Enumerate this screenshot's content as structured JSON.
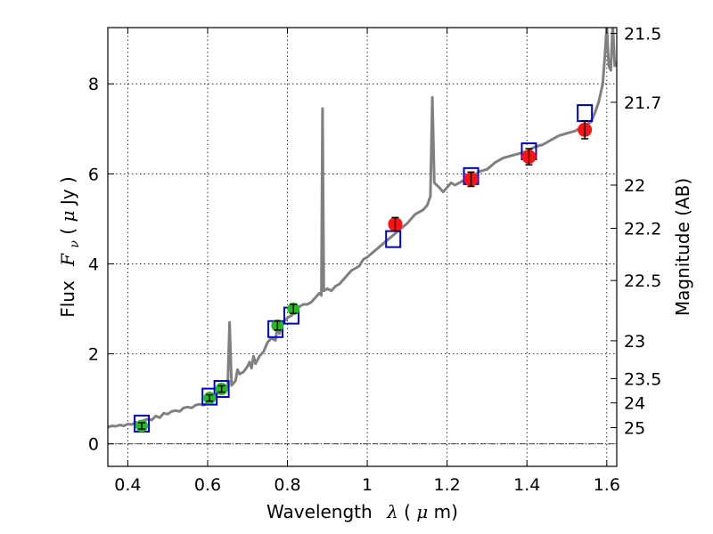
{
  "chart_data": {
    "type": "scatter",
    "xlabel": "Wavelength",
    "xlabel_symbol": "λ",
    "xlabel_unit_open": " (",
    "xlabel_unit_mu": "μ",
    "xlabel_unit_rest": "m)",
    "ylabel": "Flux",
    "ylabel_symbol": "F",
    "ylabel_symbol_sub": "ν",
    "ylabel_unit_open": " ( ",
    "ylabel_unit_mu": "μ",
    "ylabel_unit_rest": "Jy )",
    "y2label": "Magnitude (AB)",
    "xlim": [
      0.35,
      1.625
    ],
    "ylim": [
      -0.5,
      9.25
    ],
    "grid": true,
    "grid_style": "dotted",
    "x_ticks": [
      0.4,
      0.6,
      0.8,
      1.0,
      1.2,
      1.4,
      1.6
    ],
    "x_tick_labels": [
      "0.4",
      "0.6",
      "0.8",
      "1",
      "1.2",
      "1.4",
      "1.6"
    ],
    "y_ticks": [
      0,
      2,
      4,
      6,
      8
    ],
    "y_tick_labels": [
      "0",
      "2",
      "4",
      "6",
      "8"
    ],
    "y2_tick_labels": [
      "21.5",
      "21.7",
      "22",
      "22.2",
      "22.5",
      "23",
      "23.5",
      "24",
      "25"
    ],
    "y2_tick_values_flux": [
      9.12,
      7.59,
      5.75,
      4.79,
      3.63,
      2.29,
      1.45,
      0.91,
      0.36
    ],
    "zero_line": 0,
    "colors": {
      "model": "#808080",
      "model_squares": "#0000cc",
      "optical": "#22bb22",
      "nir": "#ff1111",
      "errorbar": "#000000"
    },
    "series": [
      {
        "kind": "model_spectrum",
        "points": [
          [
            0.35,
            0.37
          ],
          [
            0.36,
            0.4
          ],
          [
            0.37,
            0.39
          ],
          [
            0.38,
            0.42
          ],
          [
            0.39,
            0.4
          ],
          [
            0.4,
            0.44
          ],
          [
            0.41,
            0.43
          ],
          [
            0.42,
            0.48
          ],
          [
            0.43,
            0.45
          ],
          [
            0.44,
            0.52
          ],
          [
            0.45,
            0.55
          ],
          [
            0.46,
            0.53
          ],
          [
            0.47,
            0.62
          ],
          [
            0.48,
            0.58
          ],
          [
            0.49,
            0.68
          ],
          [
            0.5,
            0.66
          ],
          [
            0.51,
            0.72
          ],
          [
            0.52,
            0.74
          ],
          [
            0.53,
            0.72
          ],
          [
            0.54,
            0.8
          ],
          [
            0.55,
            0.82
          ],
          [
            0.56,
            0.8
          ],
          [
            0.57,
            0.86
          ],
          [
            0.58,
            0.88
          ],
          [
            0.59,
            0.86
          ],
          [
            0.6,
            0.92
          ],
          [
            0.61,
            0.98
          ],
          [
            0.62,
            1.05
          ],
          [
            0.625,
            1.15
          ],
          [
            0.63,
            1.14
          ],
          [
            0.64,
            1.18
          ],
          [
            0.645,
            1.25
          ],
          [
            0.65,
            1.22
          ],
          [
            0.655,
            2.7
          ],
          [
            0.66,
            1.3
          ],
          [
            0.67,
            1.4
          ],
          [
            0.675,
            1.65
          ],
          [
            0.68,
            1.55
          ],
          [
            0.69,
            1.6
          ],
          [
            0.7,
            1.72
          ],
          [
            0.705,
            1.82
          ],
          [
            0.71,
            1.68
          ],
          [
            0.715,
            1.95
          ],
          [
            0.72,
            1.78
          ],
          [
            0.73,
            1.95
          ],
          [
            0.74,
            2.05
          ],
          [
            0.75,
            2.25
          ],
          [
            0.76,
            2.35
          ],
          [
            0.77,
            2.3
          ],
          [
            0.775,
            2.6
          ],
          [
            0.78,
            2.45
          ],
          [
            0.79,
            2.7
          ],
          [
            0.8,
            2.8
          ],
          [
            0.81,
            2.85
          ],
          [
            0.82,
            2.95
          ],
          [
            0.83,
            3.05
          ],
          [
            0.84,
            3.1
          ],
          [
            0.85,
            3.1
          ],
          [
            0.86,
            3.15
          ],
          [
            0.87,
            3.25
          ],
          [
            0.88,
            3.35
          ],
          [
            0.885,
            3.3
          ],
          [
            0.888,
            7.45
          ],
          [
            0.891,
            3.4
          ],
          [
            0.9,
            3.45
          ],
          [
            0.91,
            3.4
          ],
          [
            0.92,
            3.5
          ],
          [
            0.93,
            3.55
          ],
          [
            0.94,
            3.65
          ],
          [
            0.95,
            3.75
          ],
          [
            0.96,
            3.85
          ],
          [
            0.97,
            3.9
          ],
          [
            0.98,
            3.95
          ],
          [
            0.99,
            4.1
          ],
          [
            1.0,
            4.15
          ],
          [
            1.02,
            4.3
          ],
          [
            1.04,
            4.45
          ],
          [
            1.06,
            4.6
          ],
          [
            1.08,
            4.75
          ],
          [
            1.1,
            4.9
          ],
          [
            1.12,
            5.1
          ],
          [
            1.14,
            5.2
          ],
          [
            1.15,
            5.3
          ],
          [
            1.158,
            5.5
          ],
          [
            1.163,
            7.7
          ],
          [
            1.168,
            5.8
          ],
          [
            1.18,
            5.7
          ],
          [
            1.19,
            5.6
          ],
          [
            1.2,
            5.7
          ],
          [
            1.21,
            5.8
          ],
          [
            1.22,
            5.75
          ],
          [
            1.24,
            5.85
          ],
          [
            1.26,
            5.9
          ],
          [
            1.28,
            6.05
          ],
          [
            1.3,
            6.1
          ],
          [
            1.32,
            6.25
          ],
          [
            1.34,
            6.35
          ],
          [
            1.36,
            6.4
          ],
          [
            1.38,
            6.45
          ],
          [
            1.4,
            6.5
          ],
          [
            1.42,
            6.6
          ],
          [
            1.44,
            6.65
          ],
          [
            1.46,
            6.75
          ],
          [
            1.48,
            6.85
          ],
          [
            1.5,
            6.9
          ],
          [
            1.52,
            6.95
          ],
          [
            1.54,
            7.05
          ],
          [
            1.56,
            7.15
          ],
          [
            1.57,
            7.35
          ],
          [
            1.58,
            7.6
          ],
          [
            1.59,
            8.0
          ],
          [
            1.595,
            8.6
          ],
          [
            1.6,
            9.3
          ],
          [
            1.605,
            8.4
          ],
          [
            1.61,
            8.3
          ],
          [
            1.615,
            9.3
          ],
          [
            1.62,
            8.4
          ],
          [
            1.625,
            8.5
          ]
        ]
      },
      {
        "kind": "model_photometry",
        "x": [
          0.435,
          0.605,
          0.635,
          0.77,
          0.81,
          1.065,
          1.26,
          1.405,
          1.545
        ],
        "y": [
          0.45,
          1.05,
          1.22,
          2.55,
          2.85,
          4.55,
          5.95,
          6.5,
          7.35
        ]
      },
      {
        "kind": "observed_optical",
        "x": [
          0.435,
          0.605,
          0.635,
          0.775,
          0.815
        ],
        "y": [
          0.4,
          1.02,
          1.22,
          2.63,
          3.0
        ],
        "yerr": [
          0.07,
          0.07,
          0.07,
          0.1,
          0.1
        ]
      },
      {
        "kind": "observed_nir",
        "x": [
          1.07,
          1.26,
          1.405,
          1.545
        ],
        "y": [
          4.88,
          5.88,
          6.38,
          6.98
        ],
        "yerr": [
          0.15,
          0.16,
          0.18,
          0.2
        ]
      }
    ]
  }
}
